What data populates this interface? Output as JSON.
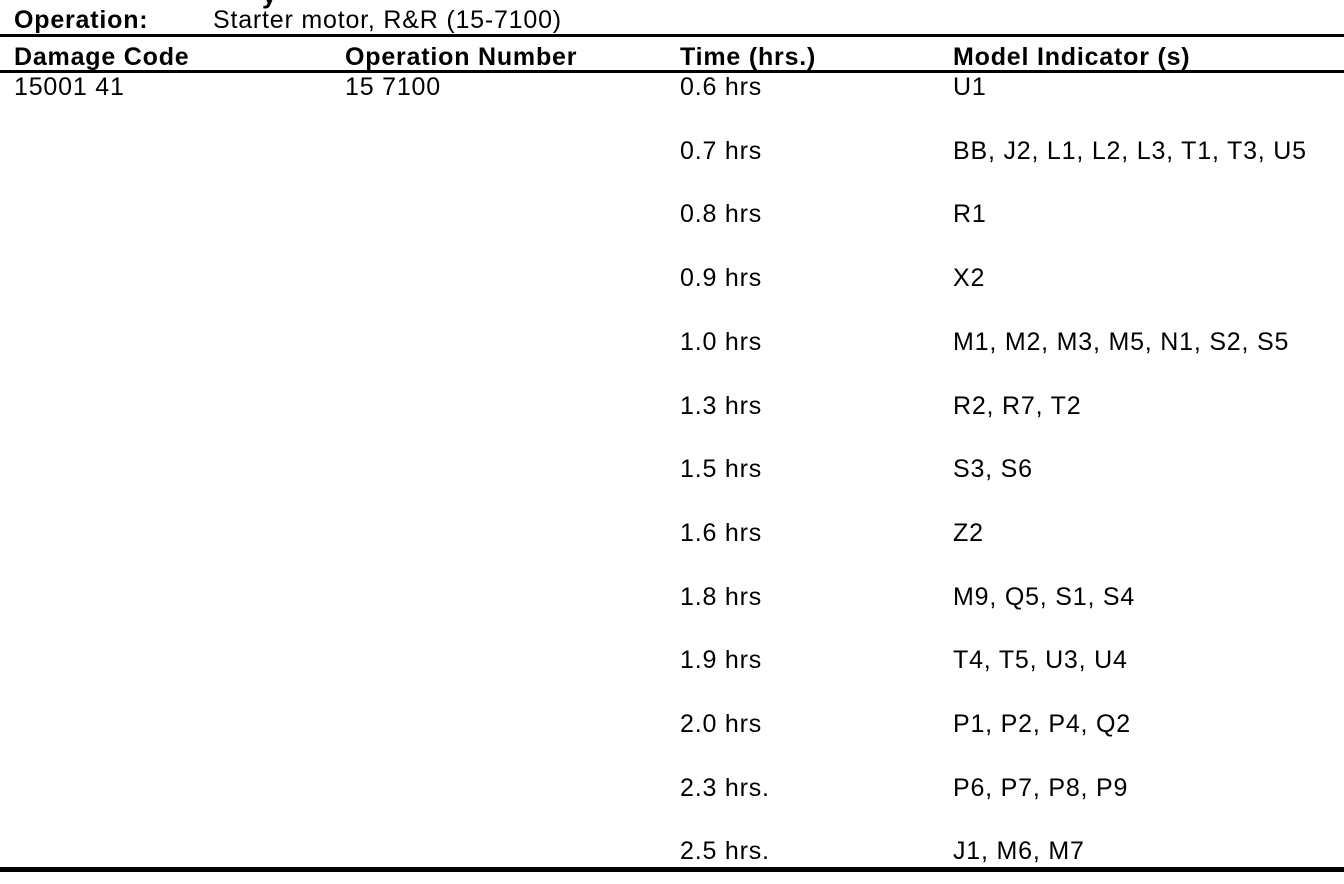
{
  "page": {
    "background": "#ffffff",
    "text_color": "#000000"
  },
  "top_fragment": {
    "char": "y"
  },
  "operation_header": {
    "label": "Operation:",
    "value": "Starter motor, R&R (15-7100)"
  },
  "table": {
    "columns": {
      "damage_code": "Damage Code",
      "operation_number": "Operation Number",
      "time": "Time (hrs.)",
      "model_indicators": "Model Indicator (s)"
    },
    "damage_code_value": "15001 41",
    "operation_number_value": "15 7100",
    "rows": [
      {
        "time": "0.6 hrs",
        "models": "U1"
      },
      {
        "time": "0.7 hrs",
        "models": "BB, J2, L1, L2, L3, T1, T3, U5"
      },
      {
        "time": "0.8 hrs",
        "models": "R1"
      },
      {
        "time": "0.9 hrs",
        "models": "X2"
      },
      {
        "time": "1.0 hrs",
        "models": "M1, M2, M3, M5, N1, S2, S5"
      },
      {
        "time": "1.3 hrs",
        "models": "R2, R7, T2"
      },
      {
        "time": "1.5 hrs",
        "models": "S3, S6"
      },
      {
        "time": "1.6 hrs",
        "models": "Z2"
      },
      {
        "time": "1.8 hrs",
        "models": "M9, Q5, S1, S4"
      },
      {
        "time": "1.9 hrs",
        "models": "T4, T5, U3, U4"
      },
      {
        "time": "2.0 hrs",
        "models": "P1, P2, P4, Q2"
      },
      {
        "time": "2.3 hrs.",
        "models": "P6, P7, P8, P9"
      },
      {
        "time": "2.5 hrs.",
        "models": "J1, M6, M7"
      }
    ]
  }
}
